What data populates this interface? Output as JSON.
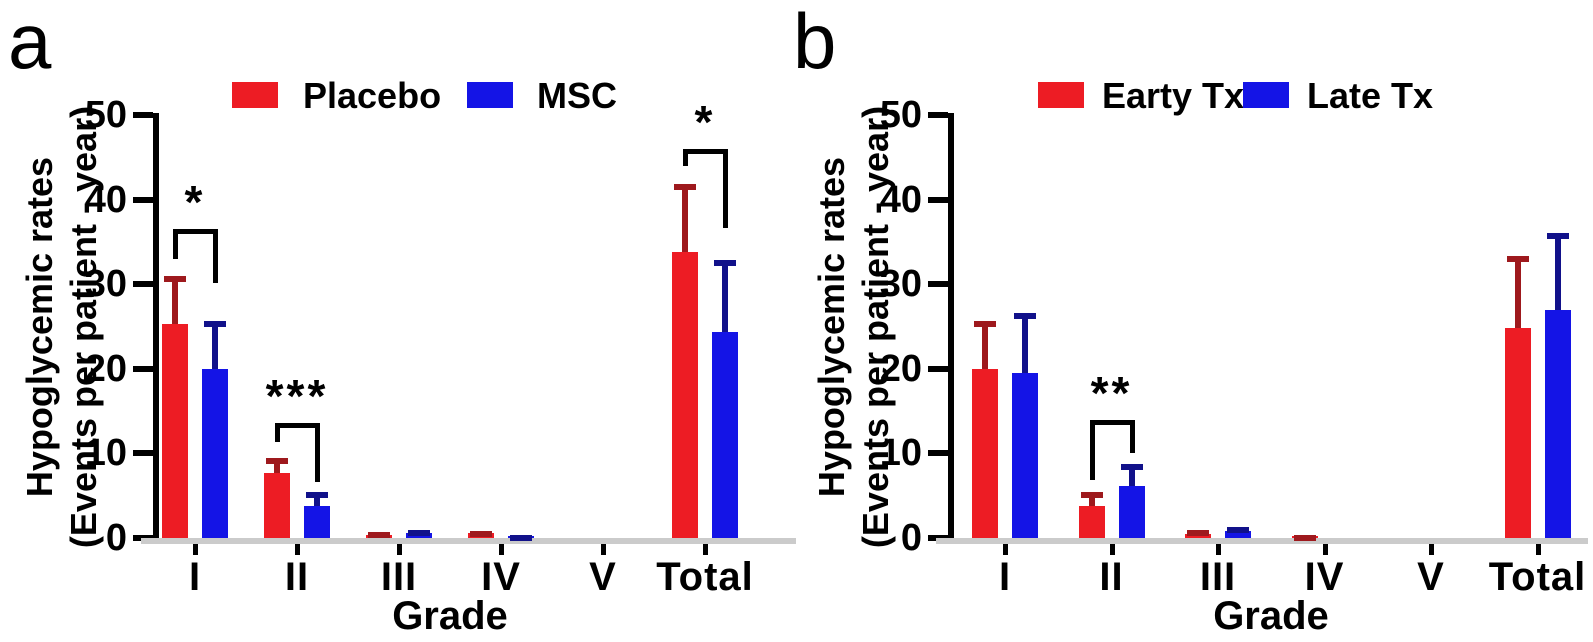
{
  "figure": {
    "background_color": "#ffffff",
    "baseline_color": "#cbcbcb",
    "bracket_color": "#000000",
    "text_color": "#000000"
  },
  "chart_data": [
    {
      "type": "bar",
      "panel_label": "a",
      "title": "",
      "xlabel": "Grade",
      "ylabel_lines": [
        "Hypoglycemic rates",
        "(Events per patient - year)"
      ],
      "categories": [
        "I",
        "II",
        "III",
        "IV",
        "V",
        "Total"
      ],
      "ylim": [
        0,
        50
      ],
      "yticks": [
        0,
        10,
        20,
        30,
        40,
        50
      ],
      "grid": false,
      "legend_position": "top",
      "error_bars": "upper",
      "series": [
        {
          "name": "Placebo",
          "color": "#ED1C24",
          "error_color": "#9E191D",
          "values": [
            25.3,
            7.7,
            0.4,
            0.55,
            0,
            33.8
          ],
          "error_tops": [
            31,
            9.4,
            0.75,
            0.85,
            0,
            41.8
          ]
        },
        {
          "name": "MSC",
          "color": "#1414E6",
          "error_color": "#11118A",
          "values": [
            20,
            3.8,
            0.6,
            0.2,
            0,
            24.4
          ],
          "error_tops": [
            25.6,
            5.4,
            1.0,
            0.35,
            0,
            32.9
          ]
        }
      ],
      "significance": [
        {
          "category": "I",
          "label": "*",
          "bracket_top": 36.5,
          "left_leg_bottom": 33,
          "right_leg_bottom": 30.2
        },
        {
          "category": "II",
          "label": "***",
          "bracket_top": 13.6,
          "left_leg_bottom": 11.3,
          "right_leg_bottom": 6.6
        },
        {
          "category": "Total",
          "label": "*",
          "bracket_top": 46,
          "left_leg_bottom": 44,
          "right_leg_bottom": 36.6
        }
      ]
    },
    {
      "type": "bar",
      "panel_label": "b",
      "title": "",
      "xlabel": "Grade",
      "ylabel_lines": [
        "Hypoglycemic rates",
        "(Events per patient - year)"
      ],
      "categories": [
        "I",
        "II",
        "III",
        "IV",
        "V",
        "Total"
      ],
      "ylim": [
        0,
        50
      ],
      "yticks": [
        0,
        10,
        20,
        30,
        40,
        50
      ],
      "grid": false,
      "legend_position": "top",
      "error_bars": "upper",
      "series": [
        {
          "name": "Earty Tx",
          "color": "#ED1C24",
          "error_color": "#9E191D",
          "values": [
            20,
            3.8,
            0.5,
            0.25,
            0,
            24.8
          ],
          "error_tops": [
            25.6,
            5.4,
            0.9,
            0.4,
            0,
            33.3
          ]
        },
        {
          "name": "Late Tx",
          "color": "#1414E6",
          "error_color": "#11118A",
          "values": [
            19.5,
            6.2,
            0.8,
            0,
            0,
            26.9
          ],
          "error_tops": [
            26.6,
            8.7,
            1.3,
            0,
            0,
            36
          ]
        }
      ],
      "significance": [
        {
          "category": "II",
          "label": "**",
          "bracket_top": 14,
          "left_leg_bottom": 6.8,
          "right_leg_bottom": 10
        }
      ]
    }
  ]
}
